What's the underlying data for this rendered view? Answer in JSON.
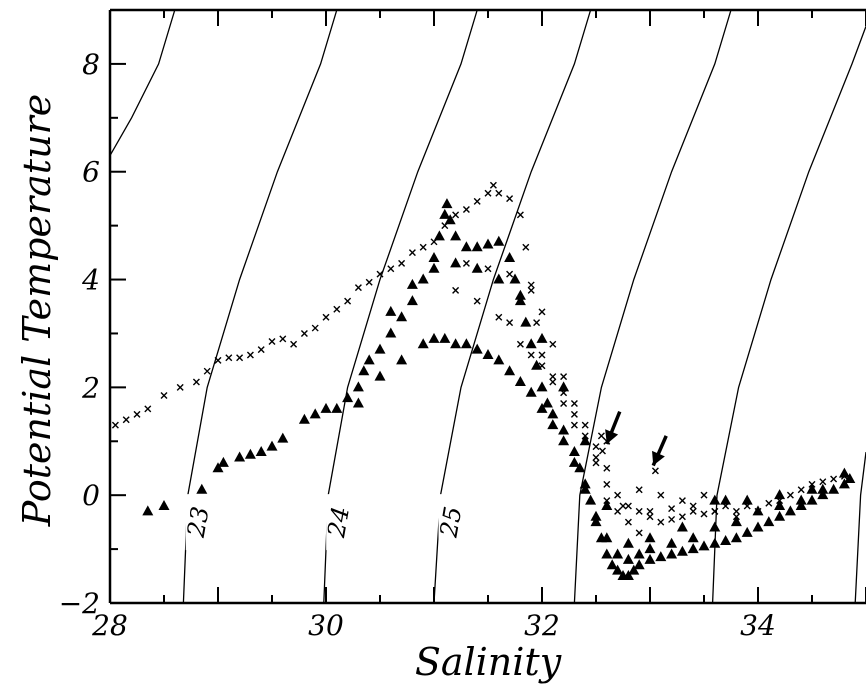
{
  "chart_data": {
    "type": "scatter",
    "title": "",
    "xlabel": "Salinity",
    "ylabel": "Potential Temperature",
    "xlim": [
      28,
      35
    ],
    "ylim": [
      -2,
      9
    ],
    "x_ticks": [
      28,
      30,
      32,
      34
    ],
    "y_ticks": [
      -2,
      0,
      2,
      4,
      6,
      8
    ],
    "grid": false,
    "isopycnals": [
      {
        "label": "23",
        "points": [
          [
            28.68,
            -2
          ],
          [
            28.72,
            0
          ],
          [
            28.9,
            2
          ],
          [
            29.2,
            4
          ],
          [
            29.55,
            6
          ],
          [
            29.95,
            8
          ],
          [
            30.1,
            9
          ]
        ]
      },
      {
        "label": "24",
        "points": [
          [
            29.98,
            -2
          ],
          [
            30.02,
            0
          ],
          [
            30.2,
            2
          ],
          [
            30.5,
            4
          ],
          [
            30.85,
            6
          ],
          [
            31.25,
            8
          ],
          [
            31.4,
            9
          ]
        ]
      },
      {
        "label": "25",
        "points": [
          [
            31.0,
            -2
          ],
          [
            31.06,
            0
          ],
          [
            31.25,
            2
          ],
          [
            31.55,
            4
          ],
          [
            31.9,
            6
          ],
          [
            32.3,
            8
          ],
          [
            32.45,
            9
          ]
        ]
      },
      {
        "label": "",
        "points": [
          [
            32.3,
            -2
          ],
          [
            32.35,
            0
          ],
          [
            32.55,
            2
          ],
          [
            32.85,
            4
          ],
          [
            33.2,
            6
          ],
          [
            33.6,
            8
          ],
          [
            33.75,
            9
          ]
        ]
      },
      {
        "label": "",
        "points": [
          [
            33.58,
            -2
          ],
          [
            33.62,
            0
          ],
          [
            33.82,
            2
          ],
          [
            34.12,
            4
          ],
          [
            34.47,
            6
          ],
          [
            34.87,
            8
          ],
          [
            35.0,
            8.7
          ]
        ]
      },
      {
        "label": "",
        "points": [
          [
            34.9,
            -2
          ],
          [
            34.95,
            0
          ],
          [
            35.0,
            0.8
          ]
        ]
      },
      {
        "label": "",
        "points": [
          [
            28.0,
            6.3
          ],
          [
            28.2,
            7.0
          ],
          [
            28.45,
            8
          ],
          [
            28.6,
            9
          ]
        ]
      }
    ],
    "series": [
      {
        "marker": "x",
        "points": [
          [
            28.05,
            1.3
          ],
          [
            28.15,
            1.4
          ],
          [
            28.25,
            1.5
          ],
          [
            28.35,
            1.6
          ],
          [
            28.5,
            1.85
          ],
          [
            28.65,
            2.0
          ],
          [
            28.8,
            2.1
          ],
          [
            28.9,
            2.3
          ],
          [
            29.0,
            2.5
          ],
          [
            29.1,
            2.55
          ],
          [
            29.2,
            2.55
          ],
          [
            29.3,
            2.6
          ],
          [
            29.4,
            2.7
          ],
          [
            29.5,
            2.85
          ],
          [
            29.6,
            2.9
          ],
          [
            29.7,
            2.8
          ],
          [
            29.8,
            3.0
          ],
          [
            29.9,
            3.1
          ],
          [
            30.0,
            3.3
          ],
          [
            30.1,
            3.45
          ],
          [
            30.2,
            3.6
          ],
          [
            30.3,
            3.85
          ],
          [
            30.4,
            3.95
          ],
          [
            30.5,
            4.1
          ],
          [
            30.6,
            4.2
          ],
          [
            30.7,
            4.3
          ],
          [
            30.8,
            4.5
          ],
          [
            30.9,
            4.6
          ],
          [
            31.0,
            4.7
          ],
          [
            31.1,
            5.0
          ],
          [
            31.2,
            5.2
          ],
          [
            31.3,
            5.3
          ],
          [
            31.4,
            5.45
          ],
          [
            31.5,
            5.6
          ],
          [
            31.55,
            5.75
          ],
          [
            31.6,
            5.6
          ],
          [
            31.7,
            5.5
          ],
          [
            31.8,
            5.2
          ],
          [
            31.85,
            4.6
          ],
          [
            31.9,
            3.8
          ],
          [
            31.95,
            3.2
          ],
          [
            32.0,
            2.6
          ],
          [
            32.1,
            2.1
          ],
          [
            32.2,
            1.7
          ],
          [
            32.3,
            1.3
          ],
          [
            32.4,
            1.0
          ],
          [
            32.5,
            0.7
          ],
          [
            32.6,
            0.5
          ],
          [
            32.7,
            0.0
          ],
          [
            32.8,
            -0.2
          ],
          [
            32.9,
            -0.3
          ],
          [
            33.0,
            -0.4
          ],
          [
            33.1,
            -0.5
          ],
          [
            33.2,
            -0.45
          ],
          [
            33.3,
            -0.4
          ],
          [
            33.4,
            -0.3
          ],
          [
            33.5,
            -0.35
          ],
          [
            33.6,
            -0.3
          ],
          [
            33.7,
            -0.2
          ],
          [
            33.8,
            -0.3
          ],
          [
            33.9,
            -0.2
          ],
          [
            34.0,
            -0.3
          ],
          [
            34.1,
            -0.15
          ],
          [
            34.2,
            -0.1
          ],
          [
            34.3,
            0.0
          ],
          [
            34.4,
            0.1
          ],
          [
            34.5,
            0.2
          ],
          [
            34.6,
            0.25
          ],
          [
            34.7,
            0.3
          ],
          [
            34.8,
            0.35
          ],
          [
            31.3,
            4.3
          ],
          [
            31.5,
            4.2
          ],
          [
            31.7,
            4.1
          ],
          [
            31.9,
            3.9
          ],
          [
            32.0,
            3.4
          ],
          [
            32.1,
            2.8
          ],
          [
            32.2,
            2.2
          ],
          [
            32.3,
            1.7
          ],
          [
            32.4,
            1.3
          ],
          [
            32.5,
            0.9
          ],
          [
            32.55,
            1.1
          ],
          [
            32.6,
            1.0
          ],
          [
            32.6,
            -0.1
          ],
          [
            32.7,
            -0.3
          ],
          [
            32.8,
            -0.5
          ],
          [
            32.9,
            -0.7
          ],
          [
            31.2,
            3.8
          ],
          [
            31.4,
            3.6
          ],
          [
            31.6,
            3.3
          ],
          [
            31.7,
            3.2
          ],
          [
            31.8,
            2.8
          ],
          [
            31.9,
            2.6
          ],
          [
            32.0,
            2.4
          ],
          [
            32.1,
            2.2
          ],
          [
            32.2,
            1.9
          ],
          [
            32.3,
            1.5
          ],
          [
            32.4,
            1.1
          ],
          [
            32.5,
            0.6
          ],
          [
            32.6,
            0.2
          ],
          [
            32.75,
            -0.2
          ],
          [
            33.0,
            -0.3
          ],
          [
            33.2,
            -0.25
          ],
          [
            33.4,
            -0.2
          ],
          [
            33.6,
            -0.3
          ],
          [
            33.8,
            -0.4
          ],
          [
            32.56,
            0.82
          ],
          [
            33.05,
            0.45
          ],
          [
            32.9,
            0.1
          ],
          [
            33.1,
            0.0
          ],
          [
            33.3,
            -0.1
          ],
          [
            33.5,
            0.0
          ]
        ]
      },
      {
        "marker": "triangle",
        "points": [
          [
            28.35,
            -0.3
          ],
          [
            28.5,
            -0.2
          ],
          [
            28.85,
            0.1
          ],
          [
            29.0,
            0.5
          ],
          [
            29.05,
            0.6
          ],
          [
            29.2,
            0.7
          ],
          [
            29.3,
            0.75
          ],
          [
            29.4,
            0.8
          ],
          [
            29.5,
            0.9
          ],
          [
            29.6,
            1.05
          ],
          [
            29.8,
            1.4
          ],
          [
            29.9,
            1.5
          ],
          [
            30.0,
            1.6
          ],
          [
            30.1,
            1.6
          ],
          [
            30.2,
            1.8
          ],
          [
            30.3,
            2.0
          ],
          [
            30.35,
            2.3
          ],
          [
            30.4,
            2.5
          ],
          [
            30.5,
            2.7
          ],
          [
            30.6,
            3.0
          ],
          [
            30.7,
            3.3
          ],
          [
            30.8,
            3.6
          ],
          [
            30.9,
            4.0
          ],
          [
            31.0,
            4.4
          ],
          [
            31.05,
            4.8
          ],
          [
            31.1,
            5.2
          ],
          [
            31.12,
            5.4
          ],
          [
            31.15,
            5.1
          ],
          [
            31.2,
            4.8
          ],
          [
            31.3,
            4.6
          ],
          [
            31.4,
            4.6
          ],
          [
            31.5,
            4.65
          ],
          [
            31.6,
            4.7
          ],
          [
            31.7,
            4.4
          ],
          [
            31.75,
            4.0
          ],
          [
            31.8,
            3.6
          ],
          [
            31.85,
            3.2
          ],
          [
            31.9,
            2.8
          ],
          [
            31.95,
            2.4
          ],
          [
            32.0,
            2.0
          ],
          [
            32.05,
            1.7
          ],
          [
            32.1,
            1.5
          ],
          [
            32.2,
            1.2
          ],
          [
            32.3,
            0.8
          ],
          [
            32.35,
            0.5
          ],
          [
            32.4,
            0.2
          ],
          [
            32.45,
            -0.1
          ],
          [
            32.5,
            -0.5
          ],
          [
            32.55,
            -0.8
          ],
          [
            32.6,
            -1.1
          ],
          [
            32.65,
            -1.3
          ],
          [
            32.7,
            -1.4
          ],
          [
            32.75,
            -1.5
          ],
          [
            32.8,
            -1.5
          ],
          [
            32.85,
            -1.4
          ],
          [
            32.9,
            -1.3
          ],
          [
            33.0,
            -1.2
          ],
          [
            33.1,
            -1.15
          ],
          [
            33.2,
            -1.1
          ],
          [
            33.3,
            -1.05
          ],
          [
            33.4,
            -1.0
          ],
          [
            33.5,
            -0.95
          ],
          [
            33.6,
            -0.9
          ],
          [
            33.7,
            -0.85
          ],
          [
            33.8,
            -0.8
          ],
          [
            33.9,
            -0.7
          ],
          [
            34.0,
            -0.6
          ],
          [
            34.1,
            -0.5
          ],
          [
            34.2,
            -0.4
          ],
          [
            34.3,
            -0.3
          ],
          [
            34.4,
            -0.2
          ],
          [
            34.5,
            -0.1
          ],
          [
            34.6,
            0.0
          ],
          [
            34.7,
            0.1
          ],
          [
            34.8,
            0.2
          ],
          [
            34.85,
            0.3
          ],
          [
            30.3,
            1.7
          ],
          [
            30.5,
            2.2
          ],
          [
            30.7,
            2.5
          ],
          [
            30.9,
            2.8
          ],
          [
            31.0,
            2.9
          ],
          [
            31.1,
            2.9
          ],
          [
            31.2,
            2.8
          ],
          [
            31.3,
            2.8
          ],
          [
            31.4,
            2.7
          ],
          [
            31.5,
            2.6
          ],
          [
            31.6,
            2.5
          ],
          [
            31.7,
            2.3
          ],
          [
            31.8,
            2.1
          ],
          [
            31.9,
            1.9
          ],
          [
            32.0,
            1.6
          ],
          [
            32.1,
            1.3
          ],
          [
            32.2,
            1.0
          ],
          [
            32.3,
            0.6
          ],
          [
            32.4,
            0.1
          ],
          [
            32.5,
            -0.4
          ],
          [
            32.6,
            -0.8
          ],
          [
            32.7,
            -1.1
          ],
          [
            32.8,
            -1.2
          ],
          [
            32.9,
            -1.1
          ],
          [
            33.0,
            -1.0
          ],
          [
            33.2,
            -0.9
          ],
          [
            33.4,
            -0.8
          ],
          [
            33.6,
            -0.6
          ],
          [
            33.8,
            -0.5
          ],
          [
            34.0,
            -0.3
          ],
          [
            34.2,
            -0.2
          ],
          [
            34.4,
            -0.1
          ],
          [
            34.6,
            0.1
          ],
          [
            30.6,
            3.4
          ],
          [
            30.8,
            3.9
          ],
          [
            31.0,
            4.2
          ],
          [
            31.2,
            4.3
          ],
          [
            31.4,
            4.2
          ],
          [
            31.6,
            4.0
          ],
          [
            31.8,
            3.7
          ],
          [
            32.0,
            2.9
          ],
          [
            32.2,
            2.0
          ],
          [
            32.4,
            1.0
          ],
          [
            32.6,
            -0.2
          ],
          [
            32.8,
            -0.9
          ],
          [
            33.0,
            -0.8
          ],
          [
            33.3,
            -0.6
          ],
          [
            33.6,
            -0.1
          ],
          [
            33.7,
            -0.1
          ],
          [
            33.9,
            -0.1
          ],
          [
            34.2,
            0.0
          ],
          [
            34.5,
            0.1
          ],
          [
            34.8,
            0.4
          ]
        ]
      }
    ],
    "arrows": [
      {
        "from": [
          32.72,
          1.55
        ],
        "to": [
          32.6,
          0.95
        ]
      },
      {
        "from": [
          33.15,
          1.1
        ],
        "to": [
          33.03,
          0.55
        ]
      }
    ]
  }
}
